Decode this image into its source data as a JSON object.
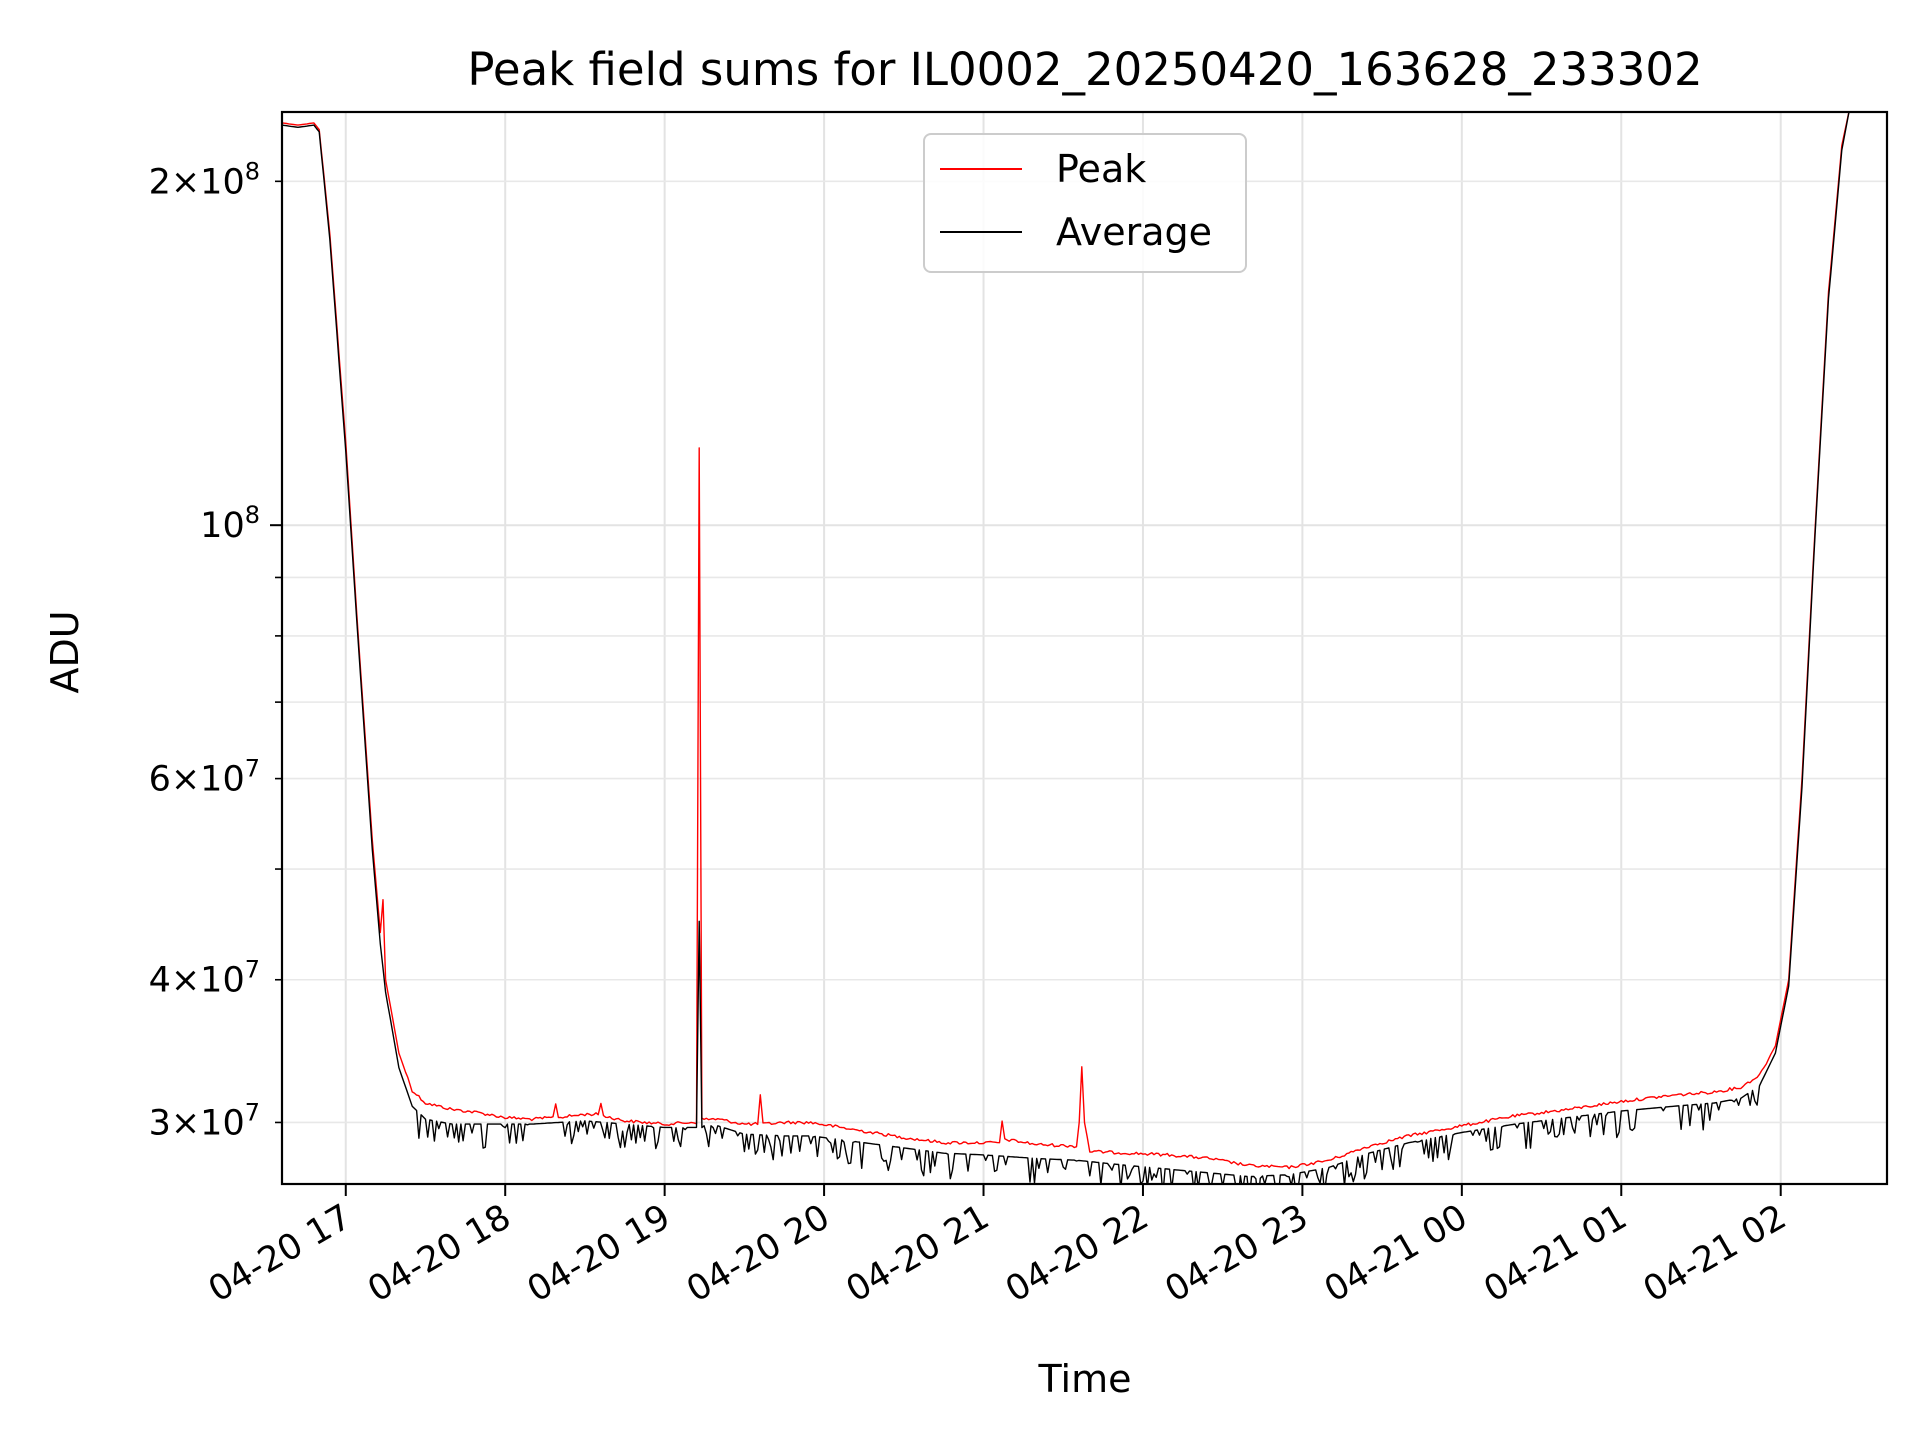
{
  "chart_data": {
    "type": "line",
    "title": "Peak field sums for IL0002_20250420_163628_233302",
    "xlabel": "Time",
    "ylabel": "ADU",
    "yscale": "log",
    "ylim": [
      26500000,
      230000000
    ],
    "xlim": [
      "2025-04-20 16:36",
      "2025-04-21 02:40"
    ],
    "grid": true,
    "legend_position": "top-center",
    "x_ticks": [
      {
        "t": "2025-04-20 17:00",
        "label": "04-20 17"
      },
      {
        "t": "2025-04-20 18:00",
        "label": "04-20 18"
      },
      {
        "t": "2025-04-20 19:00",
        "label": "04-20 19"
      },
      {
        "t": "2025-04-20 20:00",
        "label": "04-20 20"
      },
      {
        "t": "2025-04-20 21:00",
        "label": "04-20 21"
      },
      {
        "t": "2025-04-20 22:00",
        "label": "04-20 22"
      },
      {
        "t": "2025-04-20 23:00",
        "label": "04-20 23"
      },
      {
        "t": "2025-04-21 00:00",
        "label": "04-21 00"
      },
      {
        "t": "2025-04-21 01:00",
        "label": "04-21 01"
      },
      {
        "t": "2025-04-21 02:00",
        "label": "04-21 02"
      }
    ],
    "y_ticks_major": [
      {
        "v": 100000000,
        "base": "10",
        "exp": "8"
      }
    ],
    "y_ticks_minor": [
      {
        "v": 30000000,
        "mant": "3",
        "base": "10",
        "exp": "7"
      },
      {
        "v": 40000000,
        "mant": "4",
        "base": "10",
        "exp": "7"
      },
      {
        "v": 60000000,
        "mant": "6",
        "base": "10",
        "exp": "7"
      },
      {
        "v": 200000000,
        "mant": "2",
        "base": "10",
        "exp": "8"
      }
    ],
    "y_ticks_minor_unlabeled": [
      50000000,
      70000000,
      80000000,
      90000000
    ],
    "series": [
      {
        "name": "Peak",
        "color": "#ff0000",
        "points": [
          [
            "2025-04-20 16:36",
            225000000
          ],
          [
            "2025-04-20 16:42",
            224000000
          ],
          [
            "2025-04-20 16:48",
            225000000
          ],
          [
            "2025-04-20 16:50",
            222000000
          ],
          [
            "2025-04-20 16:54",
            180000000
          ],
          [
            "2025-04-20 17:00",
            118000000
          ],
          [
            "2025-04-20 17:05",
            78000000
          ],
          [
            "2025-04-20 17:10",
            53000000
          ],
          [
            "2025-04-20 17:13",
            44000000
          ],
          [
            "2025-04-20 17:14",
            47000000
          ],
          [
            "2025-04-20 17:15",
            40000000
          ],
          [
            "2025-04-20 17:20",
            34500000
          ],
          [
            "2025-04-20 17:25",
            32000000
          ],
          [
            "2025-04-20 17:30",
            31200000
          ],
          [
            "2025-04-20 17:40",
            30800000
          ],
          [
            "2025-04-20 17:50",
            30600000
          ],
          [
            "2025-04-20 18:00",
            30300000
          ],
          [
            "2025-04-20 18:10",
            30200000
          ],
          [
            "2025-04-20 18:18",
            30300000
          ],
          [
            "2025-04-20 18:19",
            31200000
          ],
          [
            "2025-04-20 18:20",
            30300000
          ],
          [
            "2025-04-20 18:30",
            30500000
          ],
          [
            "2025-04-20 18:35",
            30500000
          ],
          [
            "2025-04-20 18:36",
            31200000
          ],
          [
            "2025-04-20 18:37",
            30400000
          ],
          [
            "2025-04-20 18:45",
            30100000
          ],
          [
            "2025-04-20 19:00",
            29900000
          ],
          [
            "2025-04-20 19:10",
            30000000
          ],
          [
            "2025-04-20 19:12",
            30000000
          ],
          [
            "2025-04-20 19:13",
            117000000
          ],
          [
            "2025-04-20 19:14",
            30200000
          ],
          [
            "2025-04-20 19:20",
            30200000
          ],
          [
            "2025-04-20 19:30",
            29900000
          ],
          [
            "2025-04-20 19:35",
            29900000
          ],
          [
            "2025-04-20 19:36",
            31700000
          ],
          [
            "2025-04-20 19:37",
            29900000
          ],
          [
            "2025-04-20 19:45",
            30000000
          ],
          [
            "2025-04-20 19:55",
            30000000
          ],
          [
            "2025-04-20 20:10",
            29600000
          ],
          [
            "2025-04-20 20:30",
            29100000
          ],
          [
            "2025-04-20 20:45",
            28800000
          ],
          [
            "2025-04-20 21:00",
            28800000
          ],
          [
            "2025-04-20 21:06",
            28800000
          ],
          [
            "2025-04-20 21:07",
            30000000
          ],
          [
            "2025-04-20 21:08",
            29000000
          ],
          [
            "2025-04-20 21:20",
            28700000
          ],
          [
            "2025-04-20 21:35",
            28600000
          ],
          [
            "2025-04-20 21:36",
            30000000
          ],
          [
            "2025-04-20 21:37",
            33600000
          ],
          [
            "2025-04-20 21:38",
            30000000
          ],
          [
            "2025-04-20 21:40",
            28300000
          ],
          [
            "2025-04-20 21:55",
            28200000
          ],
          [
            "2025-04-20 22:10",
            28100000
          ],
          [
            "2025-04-20 22:25",
            27900000
          ],
          [
            "2025-04-20 22:40",
            27500000
          ],
          [
            "2025-04-20 22:55",
            27400000
          ],
          [
            "2025-04-20 23:10",
            27800000
          ],
          [
            "2025-04-20 23:25",
            28600000
          ],
          [
            "2025-04-20 23:40",
            29200000
          ],
          [
            "2025-04-21 00:00",
            29800000
          ],
          [
            "2025-04-21 00:20",
            30400000
          ],
          [
            "2025-04-21 00:40",
            30800000
          ],
          [
            "2025-04-21 01:00",
            31300000
          ],
          [
            "2025-04-21 01:20",
            31700000
          ],
          [
            "2025-04-21 01:35",
            31900000
          ],
          [
            "2025-04-21 01:45",
            32200000
          ],
          [
            "2025-04-21 01:52",
            33000000
          ],
          [
            "2025-04-21 01:58",
            35000000
          ],
          [
            "2025-04-21 02:03",
            40000000
          ],
          [
            "2025-04-21 02:08",
            60000000
          ],
          [
            "2025-04-21 02:13",
            100000000
          ],
          [
            "2025-04-21 02:18",
            160000000
          ],
          [
            "2025-04-21 02:23",
            215000000
          ],
          [
            "2025-04-21 02:26",
            232000000
          ]
        ]
      },
      {
        "name": "Average",
        "color": "#000000",
        "points": [
          [
            "2025-04-20 16:36",
            224000000
          ],
          [
            "2025-04-20 16:42",
            223000000
          ],
          [
            "2025-04-20 16:48",
            224000000
          ],
          [
            "2025-04-20 16:50",
            221000000
          ],
          [
            "2025-04-20 16:54",
            178000000
          ],
          [
            "2025-04-20 17:00",
            116000000
          ],
          [
            "2025-04-20 17:05",
            77000000
          ],
          [
            "2025-04-20 17:10",
            52000000
          ],
          [
            "2025-04-20 17:13",
            43000000
          ],
          [
            "2025-04-20 17:15",
            39000000
          ],
          [
            "2025-04-20 17:20",
            33500000
          ],
          [
            "2025-04-20 17:25",
            31000000
          ],
          [
            "2025-04-20 17:30",
            30200000
          ],
          [
            "2025-04-20 17:40",
            29900000
          ],
          [
            "2025-04-20 17:50",
            29900000
          ],
          [
            "2025-04-20 18:00",
            29900000
          ],
          [
            "2025-04-20 18:10",
            29900000
          ],
          [
            "2025-04-20 18:20",
            30000000
          ],
          [
            "2025-04-20 18:30",
            30100000
          ],
          [
            "2025-04-20 18:45",
            29900000
          ],
          [
            "2025-04-20 19:00",
            29700000
          ],
          [
            "2025-04-20 19:12",
            29700000
          ],
          [
            "2025-04-20 19:13",
            45000000
          ],
          [
            "2025-04-20 19:14",
            29800000
          ],
          [
            "2025-04-20 19:20",
            29800000
          ],
          [
            "2025-04-20 19:30",
            29300000
          ],
          [
            "2025-04-20 19:45",
            29200000
          ],
          [
            "2025-04-20 19:55",
            29200000
          ],
          [
            "2025-04-20 20:10",
            28900000
          ],
          [
            "2025-04-20 20:30",
            28500000
          ],
          [
            "2025-04-20 20:45",
            28200000
          ],
          [
            "2025-04-20 21:00",
            28100000
          ],
          [
            "2025-04-20 21:20",
            27900000
          ],
          [
            "2025-04-20 21:35",
            27800000
          ],
          [
            "2025-04-20 21:55",
            27500000
          ],
          [
            "2025-04-20 22:10",
            27300000
          ],
          [
            "2025-04-20 22:25",
            27100000
          ],
          [
            "2025-04-20 22:40",
            26900000
          ],
          [
            "2025-04-20 22:55",
            27000000
          ],
          [
            "2025-04-20 23:10",
            27400000
          ],
          [
            "2025-04-20 23:25",
            28200000
          ],
          [
            "2025-04-20 23:40",
            28800000
          ],
          [
            "2025-04-21 00:00",
            29400000
          ],
          [
            "2025-04-21 00:20",
            29900000
          ],
          [
            "2025-04-21 00:40",
            30300000
          ],
          [
            "2025-04-21 01:00",
            30700000
          ],
          [
            "2025-04-21 01:20",
            31000000
          ],
          [
            "2025-04-21 01:35",
            31200000
          ],
          [
            "2025-04-21 01:45",
            31500000
          ],
          [
            "2025-04-21 01:52",
            32300000
          ],
          [
            "2025-04-21 01:58",
            34500000
          ],
          [
            "2025-04-21 02:03",
            39500000
          ],
          [
            "2025-04-21 02:08",
            59000000
          ],
          [
            "2025-04-21 02:13",
            99000000
          ],
          [
            "2025-04-21 02:18",
            158000000
          ],
          [
            "2025-04-21 02:23",
            213000000
          ],
          [
            "2025-04-21 02:26",
            232000000
          ]
        ]
      }
    ]
  }
}
